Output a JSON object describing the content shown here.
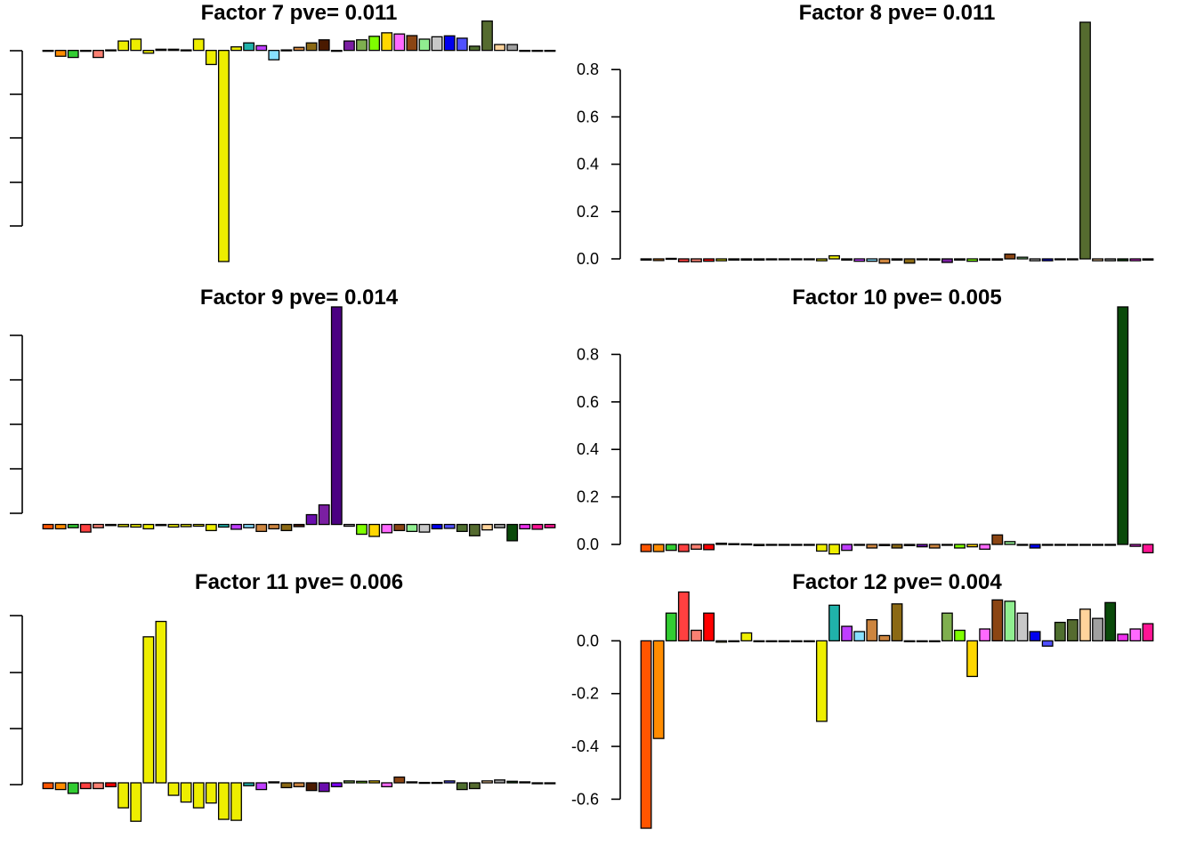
{
  "chart_data": [
    {
      "type": "bar",
      "title": "Factor 7 pve= 0.011",
      "show_tick_labels": false,
      "ylim": [
        -0.9,
        0.12
      ],
      "ticks": [],
      "colors": [
        "#FF5500",
        "#FF8C00",
        "#32CD32",
        "#FF4040",
        "#FA8072",
        "#FF0000",
        "#EEEE00",
        "#EEEE00",
        "#EEEE00",
        "#EEEE00",
        "#EEEE00",
        "#EEEE00",
        "#EEEE00",
        "#EEEE00",
        "#EEEE00",
        "#EEEE00",
        "#20B2AA",
        "#BF3EFF",
        "#87E0FF",
        "#CD853F",
        "#CD853F",
        "#8B6914",
        "#4A1A00",
        "#6A0DAD",
        "#7B1FA2",
        "#7FAF4F",
        "#7FFF00",
        "#FFD700",
        "#FF69FF",
        "#8B4513",
        "#90EE90",
        "#C8C8C8",
        "#0000EE",
        "#5050FF",
        "#4F6F2F",
        "#556B2F",
        "#FFD39B",
        "#A0A0A0",
        "#0A4A0A",
        "#EE30EE",
        "#FF1493"
      ],
      "values": [
        0,
        -0.025,
        -0.03,
        0,
        -0.03,
        0.002,
        0.04,
        0.048,
        -0.012,
        0.005,
        0.005,
        0.002,
        0.048,
        -0.06,
        -0.9,
        0.015,
        0.032,
        0.02,
        -0.04,
        0.002,
        0.013,
        0.032,
        0.045,
        0,
        0.04,
        0.045,
        0.06,
        0.075,
        0.07,
        0.063,
        0.048,
        0.058,
        0.062,
        0.052,
        0.018,
        0.125,
        0.025,
        0.025,
        0,
        0,
        0
      ]
    },
    {
      "type": "bar",
      "title": "Factor 8 pve= 0.011",
      "show_tick_labels": true,
      "ylim": [
        0,
        1
      ],
      "ticks": [
        "0.0",
        "0.2",
        "0.4",
        "0.6",
        "0.8"
      ],
      "colors": [
        "#FF5500",
        "#FF8C00",
        "#32CD32",
        "#FF4040",
        "#FA8072",
        "#FF0000",
        "#EEEE00",
        "#EEEE00",
        "#EEEE00",
        "#EEEE00",
        "#EEEE00",
        "#EEEE00",
        "#EEEE00",
        "#EEEE00",
        "#EEEE00",
        "#EEEE00",
        "#20B2AA",
        "#BF3EFF",
        "#87E0FF",
        "#CD853F",
        "#CD853F",
        "#8B6914",
        "#4A1A00",
        "#6A0DAD",
        "#7B1FA2",
        "#7FAF4F",
        "#7FFF00",
        "#FFD700",
        "#FF69FF",
        "#8B4513",
        "#90EE90",
        "#C8C8C8",
        "#0000EE",
        "#5050FF",
        "#4F6F2F",
        "#556B2F",
        "#FFD39B",
        "#A0A0A0",
        "#0A4A0A",
        "#EE30EE",
        "#FF1493"
      ],
      "values": [
        -0.005,
        -0.007,
        0.002,
        -0.012,
        -0.012,
        -0.01,
        -0.008,
        -0.005,
        -0.005,
        -0.005,
        -0.004,
        -0.003,
        0,
        -0.002,
        -0.008,
        0.013,
        -0.005,
        -0.01,
        -0.01,
        -0.018,
        -0.005,
        -0.018,
        0,
        -0.005,
        -0.015,
        -0.005,
        -0.01,
        -0.005,
        -0.005,
        0.02,
        0.007,
        -0.008,
        -0.008,
        -0.003,
        -0.003,
        1.0,
        -0.008,
        -0.008,
        -0.008,
        -0.008,
        -0.005
      ]
    },
    {
      "type": "bar",
      "title": "Factor 9 pve= 0.014",
      "show_tick_labels": false,
      "ylim": [
        -0.1,
        1
      ],
      "ticks": [],
      "colors": [
        "#FF5500",
        "#FF8C00",
        "#32CD32",
        "#FF4040",
        "#FA8072",
        "#FF0000",
        "#EEEE00",
        "#EEEE00",
        "#EEEE00",
        "#EEEE00",
        "#EEEE00",
        "#EEEE00",
        "#EEEE00",
        "#EEEE00",
        "#20B2AA",
        "#BF3EFF",
        "#87E0FF",
        "#CD853F",
        "#CD853F",
        "#8B6914",
        "#4A1A00",
        "#6A0DAD",
        "#7B1FA2",
        "#4B0082",
        "#A0A0A0",
        "#7FFF00",
        "#FFD700",
        "#FF69FF",
        "#8B4513",
        "#90EE90",
        "#C8C8C8",
        "#0000EE",
        "#5050FF",
        "#4F6F2F",
        "#556B2F",
        "#FFD39B",
        "#A0A0A0",
        "#0A4A0A",
        "#EE30EE",
        "#FF1493",
        "#FF1493"
      ],
      "values": [
        -0.02,
        -0.02,
        -0.015,
        -0.035,
        -0.015,
        -0.005,
        -0.01,
        -0.012,
        -0.02,
        -0.005,
        -0.012,
        -0.01,
        -0.008,
        -0.028,
        -0.012,
        -0.022,
        -0.015,
        -0.032,
        -0.02,
        -0.028,
        -0.01,
        0.045,
        0.09,
        1.0,
        -0.008,
        -0.045,
        -0.055,
        -0.038,
        -0.028,
        -0.032,
        -0.035,
        -0.02,
        -0.018,
        -0.032,
        -0.052,
        -0.025,
        -0.015,
        -0.075,
        -0.02,
        -0.022,
        -0.015
      ]
    },
    {
      "type": "bar",
      "title": "Factor 10 pve= 0.005",
      "show_tick_labels": true,
      "ylim": [
        0,
        1
      ],
      "ticks": [
        "0.0",
        "0.2",
        "0.4",
        "0.6",
        "0.8"
      ],
      "colors": [
        "#FF5500",
        "#FF8C00",
        "#32CD32",
        "#FF4040",
        "#FA8072",
        "#FF0000",
        "#EEEE00",
        "#EEEE00",
        "#EEEE00",
        "#EEEE00",
        "#EEEE00",
        "#EEEE00",
        "#EEEE00",
        "#EEEE00",
        "#EEEE00",
        "#EEEE00",
        "#BF3EFF",
        "#87E0FF",
        "#CD853F",
        "#CD853F",
        "#8B6914",
        "#4A1A00",
        "#6A0DAD",
        "#CD853F",
        "#7FAF4F",
        "#7FFF00",
        "#FFD700",
        "#FF69FF",
        "#8B4513",
        "#90EE90",
        "#C8C8C8",
        "#0000EE",
        "#5050FF",
        "#4F6F2F",
        "#556B2F",
        "#FFD39B",
        "#A0A0A0",
        "#0A4A0A",
        "#0A4A0A",
        "#EE30EE",
        "#FF1493"
      ],
      "values": [
        -0.03,
        -0.03,
        -0.025,
        -0.03,
        -0.02,
        -0.022,
        0.005,
        0.003,
        0.002,
        -0.005,
        0,
        -0.002,
        -0.002,
        -0.001,
        -0.028,
        -0.04,
        -0.025,
        -0.002,
        -0.015,
        -0.005,
        -0.015,
        -0.005,
        -0.01,
        -0.015,
        0,
        -0.015,
        -0.01,
        -0.02,
        0.04,
        0.012,
        0,
        -0.015,
        0,
        0,
        0,
        0,
        0,
        0,
        1.0,
        -0.008,
        -0.035
      ]
    },
    {
      "type": "bar",
      "title": "Factor 11 pve= 0.006",
      "show_tick_labels": false,
      "ylim": [
        -0.25,
        1
      ],
      "ticks": [],
      "colors": [
        "#FF5500",
        "#FF8C00",
        "#32CD32",
        "#FF4040",
        "#FA8072",
        "#FF0000",
        "#EEEE00",
        "#EEEE00",
        "#EEEE00",
        "#EEEE00",
        "#EEEE00",
        "#EEEE00",
        "#EEEE00",
        "#EEEE00",
        "#EEEE00",
        "#EEEE00",
        "#20B2AA",
        "#BF3EFF",
        "#CD853F",
        "#8B6914",
        "#CD853F",
        "#4A1A00",
        "#6A0DAD",
        "#7F00FF",
        "#7FAF4F",
        "#7FFF00",
        "#FFD700",
        "#FF69FF",
        "#8B4513",
        "#90EE90",
        "#C8C8C8",
        "#0000EE",
        "#5050FF",
        "#4F6F2F",
        "#556B2F",
        "#FFD39B",
        "#A0A0A0",
        "#0A4A0A",
        "#EE30EE",
        "#FF69FF",
        "#FF1493"
      ],
      "values": [
        -0.03,
        -0.035,
        -0.055,
        -0.03,
        -0.03,
        -0.02,
        -0.13,
        -0.2,
        0.76,
        0.84,
        -0.065,
        -0.1,
        -0.13,
        -0.105,
        -0.19,
        -0.195,
        -0.015,
        -0.035,
        0.005,
        -0.025,
        -0.02,
        -0.04,
        -0.045,
        -0.02,
        0.01,
        0.008,
        0.01,
        -0.02,
        0.03,
        0.005,
        0.002,
        0.002,
        0.01,
        -0.035,
        -0.03,
        0.01,
        0.015,
        0.008,
        0.005,
        0,
        0
      ]
    },
    {
      "type": "bar",
      "title": "Factor 12 pve= 0.004",
      "show_tick_labels": true,
      "ylim": [
        -0.72,
        0.19
      ],
      "ticks": [
        "-0.6",
        "-0.4",
        "-0.2",
        "0.0"
      ],
      "colors": [
        "#FF5500",
        "#FF8C00",
        "#32CD32",
        "#FF4040",
        "#FA8072",
        "#FF0000",
        "#EEEE00",
        "#EEEE00",
        "#EEEE00",
        "#EEEE00",
        "#EEEE00",
        "#EEEE00",
        "#EEEE00",
        "#EEEE00",
        "#EEEE00",
        "#20B2AA",
        "#BF3EFF",
        "#87E0FF",
        "#CD853F",
        "#CD853F",
        "#8B6914",
        "#4A1A00",
        "#6A0DAD",
        "#6A0DAD",
        "#7FAF4F",
        "#7FFF00",
        "#FFD700",
        "#FF69FF",
        "#8B4513",
        "#90EE90",
        "#C8C8C8",
        "#0000EE",
        "#5050FF",
        "#4F6F2F",
        "#556B2F",
        "#FFD39B",
        "#A0A0A0",
        "#0A4A0A",
        "#EE30EE",
        "#FF69FF",
        "#FF1493"
      ],
      "values": [
        -0.71,
        -0.37,
        0.105,
        0.185,
        0.04,
        0.105,
        -0.005,
        0,
        0.03,
        0,
        0,
        0,
        0,
        -0.003,
        -0.305,
        0.135,
        0.055,
        0.035,
        0.08,
        0.02,
        0.14,
        0,
        0,
        0,
        0.105,
        0.04,
        -0.135,
        0.045,
        0.155,
        0.15,
        0.105,
        0.035,
        -0.02,
        0.07,
        0.08,
        0.12,
        0.085,
        0.145,
        0.025,
        0.045,
        0.065
      ]
    }
  ]
}
